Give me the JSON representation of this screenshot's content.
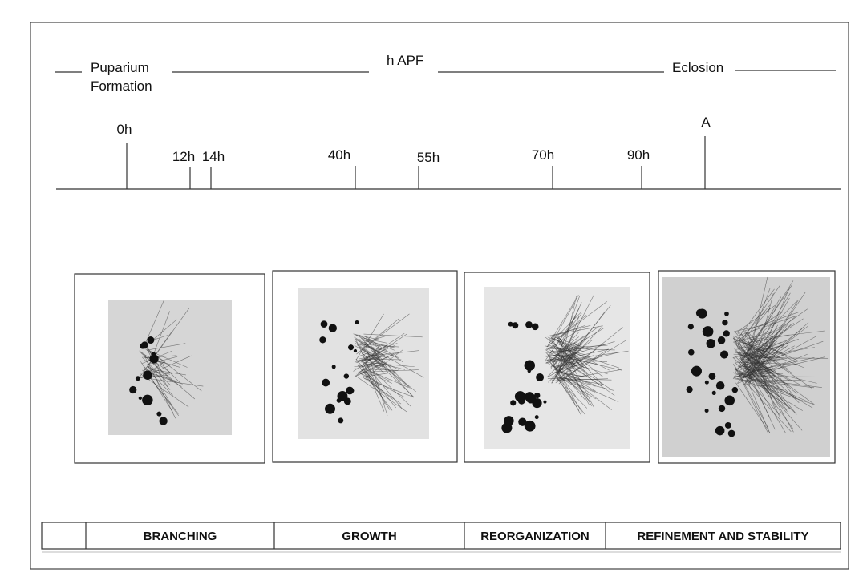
{
  "header": {
    "puparium_line1": "Puparium",
    "puparium_line2": "Formation",
    "center": "h APF",
    "eclosion": "Eclosion"
  },
  "timeline": {
    "labels": [
      "0h",
      "12h",
      "14h",
      "40h",
      "55h",
      "70h",
      "90h",
      "A"
    ]
  },
  "phases": [
    "BRANCHING",
    "GROWTH",
    "REORGANIZATION",
    "REFINEMENT AND STABILITY"
  ]
}
